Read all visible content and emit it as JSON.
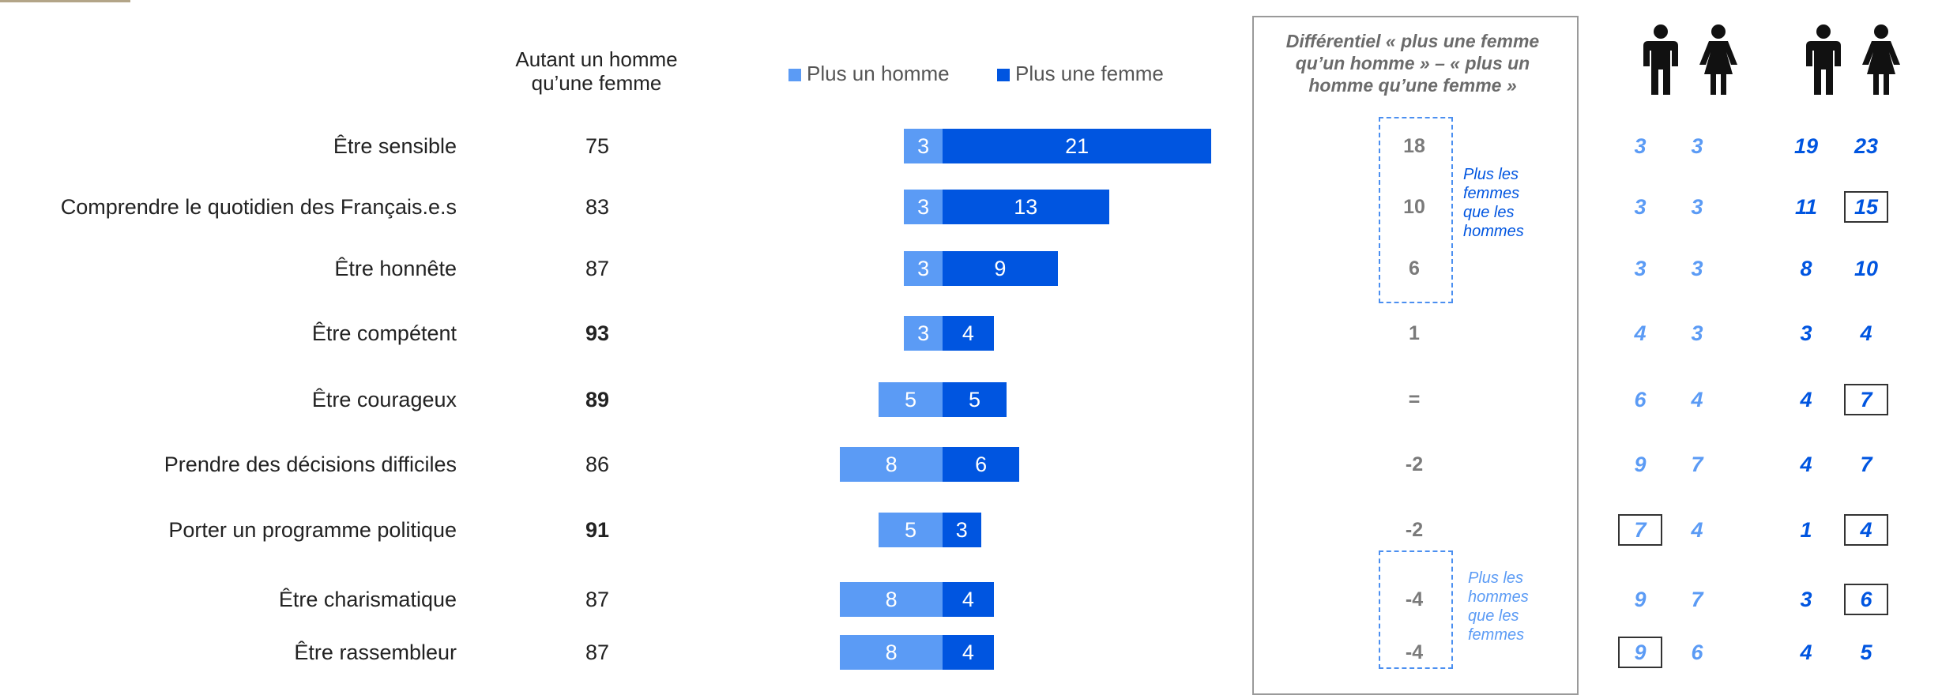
{
  "header": {
    "autant_line1": "Autant un homme",
    "autant_line2": "qu’une femme",
    "legend_homme": "Plus un homme",
    "legend_femme": "Plus une femme",
    "diff_line1": "Différentiel « plus une femme",
    "diff_line2": "qu’un homme » – « plus un",
    "diff_line3": "homme qu’une femme »"
  },
  "notes": {
    "femmes": [
      "Plus les",
      "femmes",
      "que les",
      "hommes"
    ],
    "hommes": [
      "Plus les",
      "hommes",
      "que les",
      "femmes"
    ]
  },
  "icons": [
    "man-icon",
    "woman-icon",
    "man-icon",
    "woman-icon"
  ],
  "colors": {
    "plus_homme": "#5b9bf5",
    "plus_femme": "#0055e0",
    "diff_text": "#7a7a7a",
    "dashed_box": "#4b8ff0"
  },
  "chart_data": {
    "type": "bar",
    "categories": [
      "Être sensible",
      "Comprendre le quotidien des Français.e.s",
      "Être honnête",
      "Être compétent",
      "Être courageux",
      "Prendre des décisions difficiles",
      "Porter un programme politique",
      "Être charismatique",
      "Être rassembleur"
    ],
    "autant": [
      75,
      83,
      87,
      93,
      89,
      86,
      91,
      87,
      87
    ],
    "autant_bold": [
      false,
      false,
      false,
      true,
      true,
      false,
      true,
      false,
      false
    ],
    "series": [
      {
        "name": "Plus un homme",
        "values": [
          3,
          3,
          3,
          3,
          5,
          8,
          5,
          8,
          8
        ]
      },
      {
        "name": "Plus une femme",
        "values": [
          21,
          13,
          9,
          4,
          5,
          6,
          3,
          4,
          4
        ]
      }
    ],
    "differentiel": [
      "18",
      "10",
      "6",
      "1",
      "=",
      "-2",
      "-2",
      "-4",
      "-4"
    ],
    "breakdown": [
      [
        3,
        3,
        19,
        23
      ],
      [
        3,
        3,
        11,
        15
      ],
      [
        3,
        3,
        8,
        10
      ],
      [
        4,
        3,
        3,
        4
      ],
      [
        6,
        4,
        4,
        7
      ],
      [
        9,
        7,
        4,
        7
      ],
      [
        7,
        4,
        1,
        4
      ],
      [
        9,
        7,
        3,
        6
      ],
      [
        9,
        6,
        4,
        5
      ]
    ],
    "breakdown_boxed": [
      [
        false,
        false,
        false,
        false
      ],
      [
        false,
        false,
        false,
        true
      ],
      [
        false,
        false,
        false,
        false
      ],
      [
        false,
        false,
        false,
        false
      ],
      [
        false,
        false,
        false,
        true
      ],
      [
        false,
        false,
        false,
        false
      ],
      [
        true,
        false,
        false,
        true
      ],
      [
        false,
        false,
        false,
        true
      ],
      [
        true,
        false,
        false,
        false
      ]
    ]
  }
}
